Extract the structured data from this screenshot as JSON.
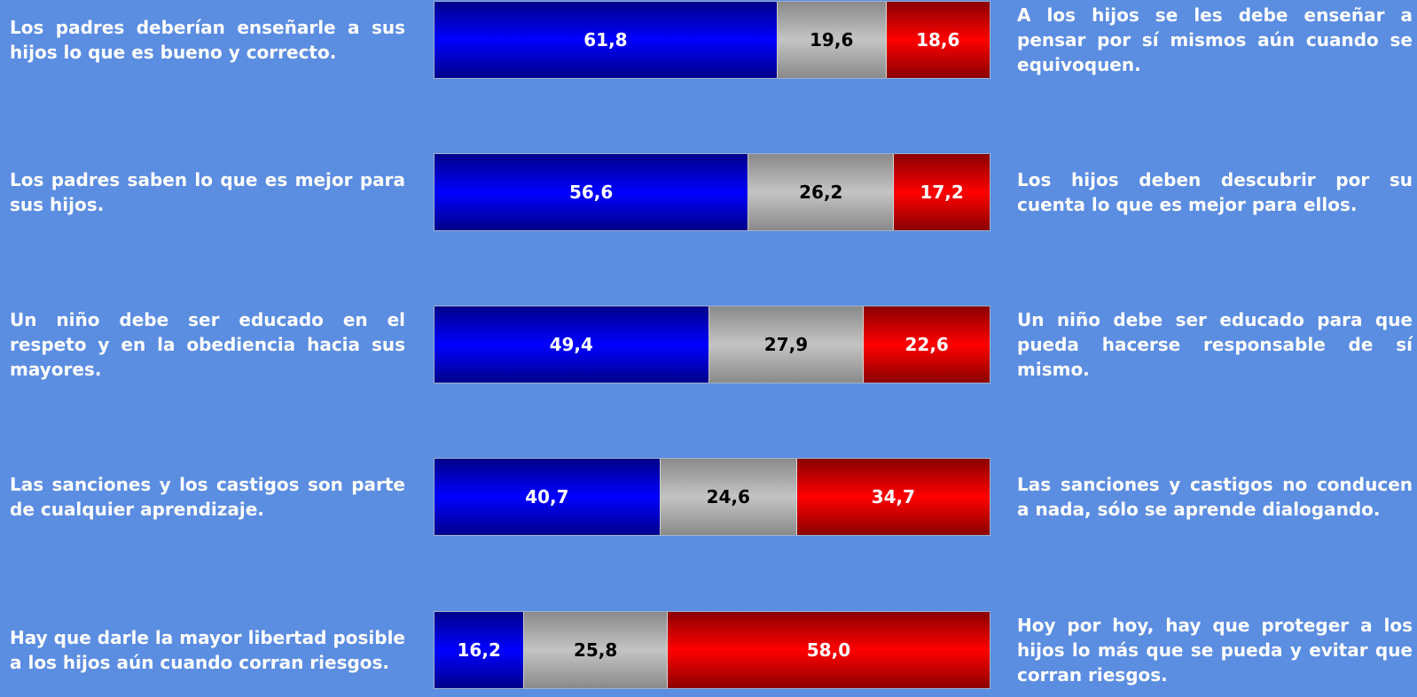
{
  "chart_data": {
    "type": "bar",
    "orientation": "horizontal",
    "stacked": true,
    "normalized_to": 100,
    "colors": {
      "left": "#0000ff",
      "middle": "#b0b0b0",
      "right": "#ff0000",
      "background": "#5b8de1"
    },
    "rows": [
      {
        "left_statement": "Los padres deberían enseñarle a sus hijos lo que es bueno y correcto.",
        "right_statement": "A los hijos se les debe enseñar a pensar por sí mismos aún cuando se equivoquen.",
        "values": [
          61.8,
          19.6,
          18.6
        ],
        "labels": [
          "61,8",
          "19,6",
          "18,6"
        ]
      },
      {
        "left_statement": "Los padres saben lo que es mejor para sus hijos.",
        "right_statement": "Los hijos deben descubrir por su cuenta lo que es mejor para ellos.",
        "values": [
          56.6,
          26.2,
          17.2
        ],
        "labels": [
          "56,6",
          "26,2",
          "17,2"
        ]
      },
      {
        "left_statement": "Un niño debe ser educado en el respeto y en la obediencia hacia sus mayores.",
        "right_statement": "Un niño debe ser educado para que pueda hacerse responsable de sí mismo.",
        "values": [
          49.4,
          27.9,
          22.6
        ],
        "labels": [
          "49,4",
          "27,9",
          "22,6"
        ]
      },
      {
        "left_statement": "Las sanciones y los castigos son parte de cualquier aprendizaje.",
        "right_statement": "Las sanciones y castigos no conducen a nada, sólo se aprende dialogando.",
        "values": [
          40.7,
          24.6,
          34.7
        ],
        "labels": [
          "40,7",
          "24,6",
          "34,7"
        ]
      },
      {
        "left_statement": "Hay que darle la mayor libertad posible a los hijos aún cuando corran riesgos.",
        "right_statement": "Hoy por hoy, hay que proteger a los hijos lo más que se pueda y evitar que corran riesgos.",
        "values": [
          16.2,
          25.8,
          58.0
        ],
        "labels": [
          "16,2",
          "25,8",
          "58,0"
        ]
      }
    ]
  }
}
